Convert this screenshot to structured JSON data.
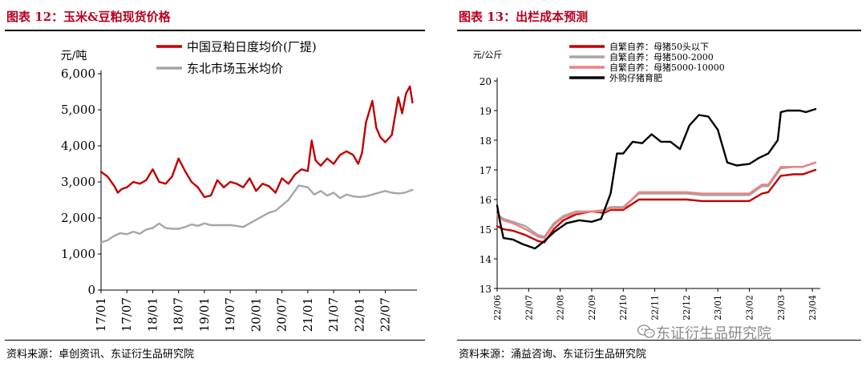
{
  "panel12": {
    "title": "图表 12：玉米&豆粕现货价格",
    "source": "资料来源：卓创资讯、东证衍生品研究院"
  },
  "panel13": {
    "title": "图表 13：出栏成本预测",
    "source": "资料来源：涌益咨询、东证衍生品研究院"
  },
  "watermark": "东证衍生品研究院",
  "colors": {
    "title": "#b8001f",
    "red": "#c00000",
    "gray": "#a6a6a6",
    "pink": "#f08080",
    "black": "#000000"
  },
  "chart_data": [
    {
      "type": "line",
      "ylabel": "元/吨",
      "ylim": [
        0,
        6000
      ],
      "yticks": [
        0,
        1000,
        2000,
        3000,
        4000,
        5000,
        6000
      ],
      "ytick_labels": [
        "0",
        "1,000",
        "2,000",
        "3,000",
        "4,000",
        "5,000",
        "6,000"
      ],
      "xticks": [
        "17/01",
        "17/07",
        "18/01",
        "18/07",
        "19/01",
        "19/07",
        "20/01",
        "20/07",
        "21/01",
        "21/07",
        "22/01",
        "22/07"
      ],
      "xlim": [
        0,
        24.2
      ],
      "legend_position": "top",
      "series": [
        {
          "name": "中国豆粕日度均价(厂提)",
          "color": "#c00000",
          "x": [
            0,
            0.5,
            1,
            1.3,
            1.6,
            2,
            2.5,
            3,
            3.5,
            4,
            4.5,
            5,
            5.5,
            6,
            6.5,
            7,
            7.5,
            8,
            8.5,
            9,
            9.5,
            10,
            10.5,
            11,
            11.5,
            12,
            12.5,
            13,
            13.5,
            14,
            14.5,
            15,
            15.5,
            16,
            16.3,
            16.6,
            17,
            17.5,
            18,
            18.5,
            19,
            19.5,
            19.9,
            20.2,
            20.5,
            21,
            21.3,
            21.6,
            22,
            22.5,
            23,
            23.3,
            23.6,
            23.9,
            24.1
          ],
          "y": [
            3280,
            3150,
            2900,
            2700,
            2800,
            2850,
            3000,
            2950,
            3050,
            3350,
            3000,
            2950,
            3150,
            3650,
            3300,
            3000,
            2850,
            2580,
            2620,
            3050,
            2850,
            3000,
            2950,
            2850,
            3100,
            2750,
            2950,
            2880,
            2700,
            3100,
            2950,
            3200,
            3350,
            3300,
            4150,
            3600,
            3450,
            3650,
            3500,
            3750,
            3850,
            3750,
            3500,
            3800,
            4650,
            5250,
            4500,
            4250,
            4100,
            4300,
            5350,
            4900,
            5450,
            5650,
            5200
          ]
        },
        {
          "name": "东北市场玉米均价",
          "color": "#a6a6a6",
          "x": [
            0,
            0.5,
            1,
            1.5,
            2,
            2.5,
            3,
            3.5,
            4,
            4.5,
            5,
            5.5,
            6,
            6.5,
            7,
            7.5,
            8,
            8.5,
            9,
            9.5,
            10,
            10.5,
            11,
            11.5,
            12,
            12.5,
            13,
            13.5,
            14,
            14.5,
            15,
            15.3,
            15.6,
            16,
            16.5,
            17,
            17.5,
            18,
            18.5,
            19,
            19.5,
            20,
            20.5,
            21,
            21.5,
            22,
            22.5,
            23,
            23.5,
            24.1
          ],
          "y": [
            1320,
            1380,
            1500,
            1580,
            1550,
            1620,
            1560,
            1680,
            1720,
            1850,
            1720,
            1700,
            1700,
            1750,
            1820,
            1780,
            1850,
            1800,
            1800,
            1800,
            1800,
            1780,
            1750,
            1850,
            1950,
            2050,
            2150,
            2200,
            2350,
            2500,
            2750,
            2900,
            2880,
            2850,
            2650,
            2750,
            2620,
            2700,
            2550,
            2650,
            2600,
            2580,
            2600,
            2650,
            2700,
            2750,
            2700,
            2680,
            2700,
            2780
          ]
        }
      ]
    },
    {
      "type": "line",
      "ylabel": "元/公斤",
      "ylim": [
        13,
        20
      ],
      "yticks": [
        13,
        14,
        15,
        16,
        17,
        18,
        19,
        20
      ],
      "ytick_labels": [
        "13",
        "14",
        "15",
        "16",
        "17",
        "18",
        "19",
        "20"
      ],
      "xticks": [
        "22/06",
        "22/07",
        "22/08",
        "22/09",
        "22/10",
        "22/11",
        "22/12",
        "23/01",
        "23/02",
        "23/03",
        "23/04"
      ],
      "xlim": [
        0,
        10.15
      ],
      "legend_position": "top-left",
      "series": [
        {
          "name": "自繁自养：母猪50头以下",
          "color": "#c00000",
          "x": [
            0,
            0.2,
            0.5,
            0.9,
            1.3,
            1.5,
            1.8,
            2.1,
            2.5,
            3,
            3.4,
            3.6,
            4,
            4.5,
            5,
            5.5,
            6,
            6.5,
            7,
            7.5,
            8,
            8.4,
            8.6,
            9,
            9.4,
            9.7,
            10.1
          ],
          "y": [
            15.1,
            15.0,
            14.95,
            14.8,
            14.6,
            14.55,
            15.0,
            15.3,
            15.5,
            15.6,
            15.55,
            15.65,
            15.65,
            16.0,
            16.0,
            16.0,
            16.0,
            15.95,
            15.95,
            15.95,
            15.95,
            16.2,
            16.25,
            16.8,
            16.85,
            16.85,
            17.0
          ]
        },
        {
          "name": "自繁自养：母猪500-2000",
          "color": "#a6a6a6",
          "x": [
            0,
            0.2,
            0.5,
            0.9,
            1.3,
            1.5,
            1.8,
            2.1,
            2.5,
            3,
            3.4,
            3.6,
            4,
            4.5,
            5,
            5.5,
            6,
            6.5,
            7,
            7.5,
            8,
            8.4,
            8.6,
            9,
            9.4,
            9.7,
            10.1
          ],
          "y": [
            15.5,
            15.35,
            15.25,
            15.1,
            14.8,
            14.75,
            15.2,
            15.45,
            15.6,
            15.6,
            15.65,
            15.75,
            15.75,
            16.2,
            16.2,
            16.2,
            16.2,
            16.15,
            16.15,
            16.15,
            16.15,
            16.45,
            16.45,
            17.05,
            17.1,
            17.1,
            17.25
          ]
        },
        {
          "name": "自繁自养：母猪5000-10000",
          "color": "#f08080",
          "x": [
            0,
            0.2,
            0.5,
            0.9,
            1.3,
            1.5,
            1.8,
            2.1,
            2.5,
            3,
            3.4,
            3.6,
            4,
            4.5,
            5,
            5.5,
            6,
            6.5,
            7,
            7.5,
            8,
            8.4,
            8.6,
            9,
            9.4,
            9.7,
            10.1
          ],
          "y": [
            15.45,
            15.3,
            15.2,
            15.0,
            14.75,
            14.7,
            15.15,
            15.4,
            15.55,
            15.6,
            15.6,
            15.7,
            15.7,
            16.25,
            16.25,
            16.25,
            16.25,
            16.2,
            16.2,
            16.2,
            16.2,
            16.5,
            16.5,
            17.1,
            17.1,
            17.1,
            17.25
          ]
        },
        {
          "name": "外购仔猪育肥",
          "color": "#000000",
          "x": [
            0,
            0.1,
            0.2,
            0.5,
            0.8,
            1.2,
            1.5,
            1.8,
            2.2,
            2.6,
            3,
            3.3,
            3.6,
            3.8,
            4,
            4.3,
            4.6,
            4.9,
            5.2,
            5.5,
            5.8,
            6.1,
            6.4,
            6.7,
            7.0,
            7.3,
            7.6,
            8.0,
            8.3,
            8.6,
            8.9,
            9.0,
            9.2,
            9.6,
            9.8,
            10.1
          ],
          "y": [
            15.8,
            15.2,
            14.7,
            14.65,
            14.5,
            14.35,
            14.6,
            14.9,
            15.2,
            15.3,
            15.25,
            15.35,
            16.2,
            17.55,
            17.55,
            17.95,
            17.9,
            18.2,
            17.95,
            17.95,
            17.7,
            18.5,
            18.85,
            18.8,
            18.35,
            17.25,
            17.15,
            17.2,
            17.4,
            17.55,
            18.0,
            18.95,
            19.0,
            19.0,
            18.95,
            19.05
          ]
        }
      ]
    }
  ]
}
